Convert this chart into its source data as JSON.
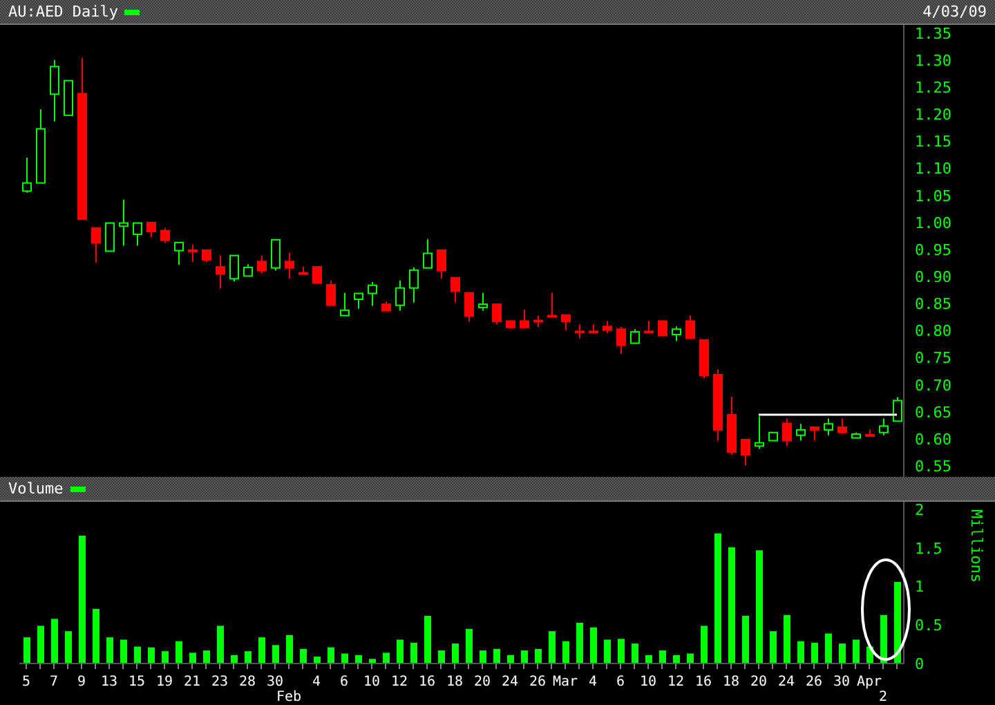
{
  "chart_data": [
    {
      "type": "candlestick",
      "title": "AU:AED Daily",
      "annotations": [
        "4/03/09"
      ],
      "ohlc": [
        [
          1.058,
          1.12,
          1.055,
          1.073
        ],
        [
          1.073,
          1.209,
          1.073,
          1.173
        ],
        [
          1.237,
          1.3,
          1.187,
          1.288
        ],
        [
          1.198,
          1.262,
          1.198,
          1.262
        ],
        [
          1.238,
          1.304,
          1.006,
          1.006
        ],
        [
          0.99,
          0.99,
          0.926,
          0.962
        ],
        [
          0.947,
          0.999,
          0.947,
          0.999
        ],
        [
          0.993,
          1.042,
          0.957,
          0.999
        ],
        [
          0.978,
          0.999,
          0.957,
          0.999
        ],
        [
          1.0,
          1.0,
          0.973,
          0.983
        ],
        [
          0.985,
          0.99,
          0.962,
          0.967
        ],
        [
          0.948,
          0.963,
          0.922,
          0.963
        ],
        [
          0.949,
          0.959,
          0.927,
          0.948
        ],
        [
          0.949,
          0.949,
          0.927,
          0.931
        ],
        [
          0.918,
          0.939,
          0.878,
          0.905
        ],
        [
          0.896,
          0.939,
          0.891,
          0.939
        ],
        [
          0.901,
          0.923,
          0.901,
          0.917
        ],
        [
          0.928,
          0.939,
          0.906,
          0.911
        ],
        [
          0.916,
          0.968,
          0.911,
          0.968
        ],
        [
          0.928,
          0.944,
          0.896,
          0.916
        ],
        [
          0.907,
          0.918,
          0.906,
          0.906
        ],
        [
          0.918,
          0.918,
          0.888,
          0.888
        ],
        [
          0.885,
          0.893,
          0.847,
          0.847
        ],
        [
          0.828,
          0.87,
          0.828,
          0.838
        ],
        [
          0.858,
          0.869,
          0.841,
          0.869
        ],
        [
          0.869,
          0.89,
          0.846,
          0.884
        ],
        [
          0.849,
          0.854,
          0.837,
          0.837
        ],
        [
          0.847,
          0.893,
          0.837,
          0.879
        ],
        [
          0.879,
          0.917,
          0.852,
          0.912
        ],
        [
          0.916,
          0.969,
          0.916,
          0.943
        ],
        [
          0.949,
          0.949,
          0.896,
          0.911
        ],
        [
          0.898,
          0.898,
          0.852,
          0.873
        ],
        [
          0.87,
          0.87,
          0.817,
          0.827
        ],
        [
          0.843,
          0.87,
          0.837,
          0.849
        ],
        [
          0.849,
          0.849,
          0.812,
          0.817
        ],
        [
          0.818,
          0.818,
          0.806,
          0.806
        ],
        [
          0.818,
          0.839,
          0.806,
          0.806
        ],
        [
          0.819,
          0.828,
          0.807,
          0.818
        ],
        [
          0.828,
          0.87,
          0.826,
          0.826
        ],
        [
          0.829,
          0.829,
          0.801,
          0.817
        ],
        [
          0.799,
          0.812,
          0.786,
          0.798
        ],
        [
          0.799,
          0.812,
          0.798,
          0.798
        ],
        [
          0.808,
          0.818,
          0.796,
          0.801
        ],
        [
          0.803,
          0.807,
          0.758,
          0.773
        ],
        [
          0.777,
          0.803,
          0.777,
          0.798
        ],
        [
          0.799,
          0.818,
          0.798,
          0.798
        ],
        [
          0.818,
          0.818,
          0.791,
          0.791
        ],
        [
          0.793,
          0.808,
          0.781,
          0.803
        ],
        [
          0.818,
          0.828,
          0.786,
          0.786
        ],
        [
          0.783,
          0.783,
          0.712,
          0.717
        ],
        [
          0.719,
          0.729,
          0.597,
          0.617
        ],
        [
          0.645,
          0.678,
          0.571,
          0.576
        ],
        [
          0.599,
          0.599,
          0.551,
          0.571
        ],
        [
          0.587,
          0.642,
          0.582,
          0.593
        ],
        [
          0.597,
          0.612,
          0.597,
          0.612
        ],
        [
          0.629,
          0.638,
          0.587,
          0.597
        ],
        [
          0.607,
          0.628,
          0.597,
          0.617
        ],
        [
          0.622,
          0.622,
          0.597,
          0.617
        ],
        [
          0.617,
          0.638,
          0.607,
          0.628
        ],
        [
          0.622,
          0.638,
          0.612,
          0.612
        ],
        [
          0.602,
          0.612,
          0.602,
          0.609
        ],
        [
          0.608,
          0.617,
          0.607,
          0.607
        ],
        [
          0.612,
          0.638,
          0.607,
          0.624
        ],
        [
          0.633,
          0.677,
          0.633,
          0.671
        ]
      ],
      "colors": [
        "#00ff00",
        "#00ff00",
        "#00ff00",
        "#00ff00",
        "#ff0000",
        "#ff0000",
        "#00ff00",
        "#00ff00",
        "#00ff00",
        "#ff0000",
        "#ff0000",
        "#00ff00",
        "#ff0000",
        "#ff0000",
        "#ff0000",
        "#00ff00",
        "#00ff00",
        "#ff0000",
        "#00ff00",
        "#ff0000",
        "#ff0000",
        "#ff0000",
        "#ff0000",
        "#00ff00",
        "#00ff00",
        "#00ff00",
        "#ff0000",
        "#00ff00",
        "#00ff00",
        "#00ff00",
        "#ff0000",
        "#ff0000",
        "#ff0000",
        "#00ff00",
        "#ff0000",
        "#ff0000",
        "#ff0000",
        "#ff0000",
        "#ff0000",
        "#ff0000",
        "#ff0000",
        "#ff0000",
        "#ff0000",
        "#ff0000",
        "#00ff00",
        "#ff0000",
        "#ff0000",
        "#00ff00",
        "#ff0000",
        "#ff0000",
        "#ff0000",
        "#ff0000",
        "#ff0000",
        "#00ff00",
        "#00ff00",
        "#ff0000",
        "#00ff00",
        "#ff0000",
        "#00ff00",
        "#ff0000",
        "#00ff00",
        "#ff0000",
        "#00ff00",
        "#00ff00"
      ],
      "series": [
        {
          "type": "line",
          "color": "#ffffff",
          "values": [
            null,
            null,
            null,
            null,
            null,
            null,
            null,
            null,
            null,
            null,
            null,
            null,
            null,
            null,
            null,
            null,
            null,
            null,
            null,
            null,
            null,
            null,
            null,
            null,
            null,
            null,
            null,
            null,
            null,
            null,
            null,
            null,
            null,
            null,
            null,
            null,
            null,
            null,
            null,
            null,
            null,
            null,
            null,
            null,
            null,
            null,
            null,
            null,
            null,
            null,
            null,
            null,
            null,
            0.645,
            0.645,
            0.645,
            0.645,
            0.645,
            0.645,
            0.645,
            0.645,
            0.645,
            0.645,
            0.645
          ]
        }
      ],
      "ylim": [
        0.53,
        1.365
      ],
      "yticks": [
        {
          "value": 0.55,
          "label": "0.55"
        },
        {
          "value": 0.6,
          "label": "0.60"
        },
        {
          "value": 0.65,
          "label": "0.65"
        },
        {
          "value": 0.7,
          "label": "0.70"
        },
        {
          "value": 0.75,
          "label": "0.75"
        },
        {
          "value": 0.8,
          "label": "0.80"
        },
        {
          "value": 0.85,
          "label": "0.85"
        },
        {
          "value": 0.9,
          "label": "0.90"
        },
        {
          "value": 0.95,
          "label": "0.95"
        },
        {
          "value": 1.0,
          "label": "1.00"
        },
        {
          "value": 1.05,
          "label": "1.05"
        },
        {
          "value": 1.1,
          "label": "1.10"
        },
        {
          "value": 1.15,
          "label": "1.15"
        },
        {
          "value": 1.2,
          "label": "1.20"
        },
        {
          "value": 1.25,
          "label": "1.25"
        },
        {
          "value": 1.3,
          "label": "1.30"
        },
        {
          "value": 1.35,
          "label": "1.35"
        }
      ],
      "tick_labels": "y"
    },
    {
      "type": "bar",
      "ylabel": "Millions",
      "legend": "top left",
      "categories": [
        "5",
        null,
        "7",
        null,
        "9",
        null,
        "13",
        null,
        "15",
        null,
        "19",
        null,
        "21",
        null,
        "23",
        null,
        "28",
        null,
        "30",
        "Feb",
        null,
        "4",
        null,
        "6",
        null,
        "10",
        null,
        "12",
        null,
        "16",
        null,
        "18",
        null,
        "20",
        null,
        "24",
        null,
        "26",
        null,
        "Mar",
        null,
        "4",
        null,
        "6",
        null,
        "10",
        null,
        "12",
        null,
        "16",
        null,
        "18",
        null,
        "20",
        null,
        "24",
        null,
        "26",
        null,
        "30",
        null,
        "Apr",
        "2",
        null
      ],
      "series": [
        {
          "name": "Volume",
          "color": "#00ff00",
          "values": [
            0.34,
            0.49,
            0.58,
            0.42,
            1.66,
            0.71,
            0.34,
            0.31,
            0.22,
            0.21,
            0.16,
            0.29,
            0.14,
            0.17,
            0.49,
            0.11,
            0.16,
            0.34,
            0.24,
            0.37,
            0.19,
            0.09,
            0.21,
            0.13,
            0.11,
            0.06,
            0.14,
            0.31,
            0.27,
            0.62,
            0.17,
            0.26,
            0.45,
            0.17,
            0.19,
            0.11,
            0.17,
            0.19,
            0.42,
            0.29,
            0.53,
            0.47,
            0.31,
            0.32,
            0.26,
            0.11,
            0.17,
            0.11,
            0.13,
            0.49,
            1.69,
            1.51,
            0.62,
            1.47,
            0.42,
            0.63,
            0.29,
            0.27,
            0.39,
            0.26,
            0.31,
            0.22,
            0.63,
            1.06
          ]
        }
      ],
      "ylim": [
        0,
        2.1
      ],
      "yticks": [
        0,
        0.5,
        1,
        1.5,
        2
      ]
    }
  ]
}
